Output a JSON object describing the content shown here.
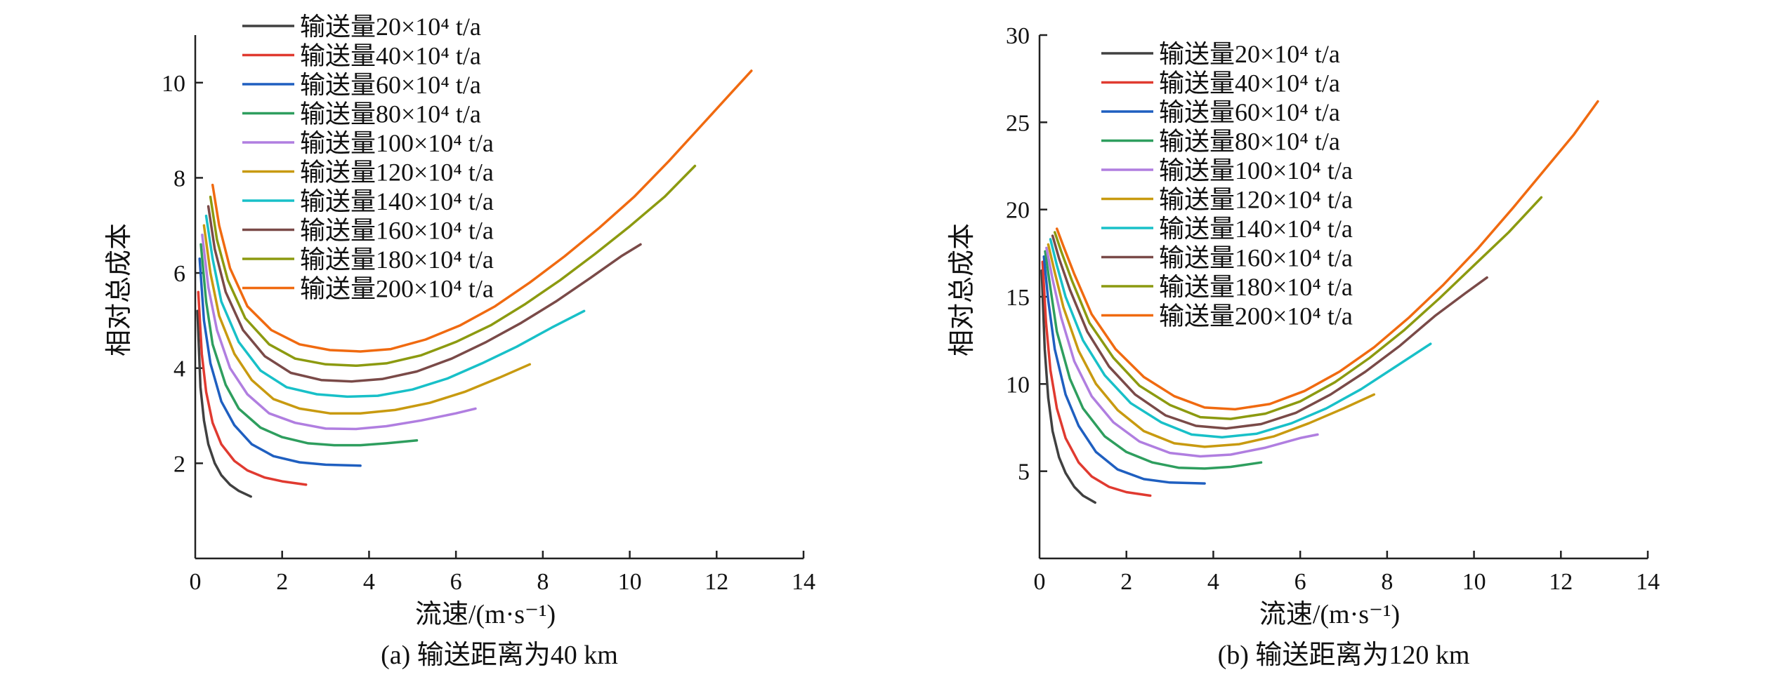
{
  "chart_data": [
    {
      "type": "line",
      "caption": "(a) 输送距离为40 km",
      "xlabel": "流速/(m·s⁻¹)",
      "ylabel": "相对总成本",
      "xlim": [
        0,
        14
      ],
      "ylim": [
        0,
        11
      ],
      "xticks": [
        0,
        2,
        4,
        6,
        8,
        10,
        12,
        14
      ],
      "yticks": [
        2,
        4,
        6,
        8,
        10
      ],
      "grid": false,
      "legend_position": "top-left",
      "series": [
        {
          "name": "输送量20×10⁴ t/a",
          "color": "#404040",
          "x": [
            0.05,
            0.12,
            0.2,
            0.3,
            0.45,
            0.6,
            0.8,
            1.0,
            1.28
          ],
          "y": [
            5.2,
            3.6,
            2.9,
            2.4,
            2.0,
            1.75,
            1.55,
            1.42,
            1.3
          ]
        },
        {
          "name": "输送量40×10⁴ t/a",
          "color": "#e03a30",
          "x": [
            0.07,
            0.15,
            0.25,
            0.4,
            0.6,
            0.9,
            1.2,
            1.6,
            2.0,
            2.55
          ],
          "y": [
            5.6,
            4.3,
            3.5,
            2.85,
            2.4,
            2.05,
            1.85,
            1.7,
            1.62,
            1.55
          ]
        },
        {
          "name": "输送量60×10⁴ t/a",
          "color": "#1f5fc0",
          "x": [
            0.1,
            0.2,
            0.35,
            0.6,
            0.9,
            1.3,
            1.8,
            2.4,
            3.0,
            3.8
          ],
          "y": [
            6.3,
            5.0,
            4.1,
            3.3,
            2.8,
            2.4,
            2.15,
            2.02,
            1.97,
            1.95
          ]
        },
        {
          "name": "输送量80×10⁴ t/a",
          "color": "#2e9e5e",
          "x": [
            0.13,
            0.25,
            0.4,
            0.7,
            1.0,
            1.5,
            2.0,
            2.6,
            3.2,
            3.8,
            4.4,
            5.1
          ],
          "y": [
            6.6,
            5.4,
            4.5,
            3.65,
            3.15,
            2.75,
            2.55,
            2.42,
            2.38,
            2.38,
            2.42,
            2.48
          ]
        },
        {
          "name": "输送量100×10⁴ t/a",
          "color": "#b07ee0",
          "x": [
            0.16,
            0.3,
            0.5,
            0.8,
            1.2,
            1.7,
            2.3,
            3.0,
            3.7,
            4.4,
            5.2,
            6.0,
            6.45
          ],
          "y": [
            6.8,
            5.7,
            4.8,
            4.0,
            3.45,
            3.05,
            2.85,
            2.73,
            2.72,
            2.78,
            2.9,
            3.05,
            3.15
          ]
        },
        {
          "name": "输送量120×10⁴ t/a",
          "color": "#c89a10",
          "x": [
            0.2,
            0.35,
            0.55,
            0.9,
            1.3,
            1.8,
            2.4,
            3.1,
            3.8,
            4.6,
            5.4,
            6.2,
            7.0,
            7.7
          ],
          "y": [
            7.0,
            6.0,
            5.1,
            4.3,
            3.75,
            3.35,
            3.15,
            3.05,
            3.05,
            3.12,
            3.27,
            3.5,
            3.8,
            4.08
          ]
        },
        {
          "name": "输送量140×10⁴ t/a",
          "color": "#18c0c8",
          "x": [
            0.25,
            0.4,
            0.6,
            1.0,
            1.5,
            2.1,
            2.8,
            3.5,
            4.2,
            5.0,
            5.8,
            6.6,
            7.4,
            8.2,
            8.95
          ],
          "y": [
            7.2,
            6.3,
            5.4,
            4.55,
            3.95,
            3.6,
            3.45,
            3.4,
            3.42,
            3.55,
            3.78,
            4.1,
            4.45,
            4.85,
            5.2
          ]
        },
        {
          "name": "输送量160×10⁴ t/a",
          "color": "#7a4a48",
          "x": [
            0.3,
            0.45,
            0.7,
            1.1,
            1.6,
            2.2,
            2.9,
            3.6,
            4.3,
            5.1,
            5.9,
            6.7,
            7.5,
            8.3,
            9.1,
            9.8,
            10.25
          ],
          "y": [
            7.4,
            6.5,
            5.6,
            4.8,
            4.25,
            3.9,
            3.75,
            3.72,
            3.77,
            3.93,
            4.2,
            4.55,
            4.95,
            5.4,
            5.9,
            6.35,
            6.6
          ]
        },
        {
          "name": "输送量180×10⁴ t/a",
          "color": "#8c9a10",
          "x": [
            0.35,
            0.5,
            0.75,
            1.15,
            1.7,
            2.3,
            3.0,
            3.7,
            4.4,
            5.2,
            6.0,
            6.8,
            7.6,
            8.4,
            9.2,
            10.0,
            10.8,
            11.5
          ],
          "y": [
            7.6,
            6.7,
            5.85,
            5.05,
            4.5,
            4.2,
            4.08,
            4.05,
            4.1,
            4.27,
            4.55,
            4.9,
            5.35,
            5.85,
            6.4,
            6.98,
            7.6,
            8.25
          ]
        },
        {
          "name": "输送量200×10⁴ t/a",
          "color": "#f06a10",
          "x": [
            0.4,
            0.55,
            0.8,
            1.2,
            1.75,
            2.4,
            3.1,
            3.8,
            4.5,
            5.3,
            6.1,
            6.9,
            7.7,
            8.5,
            9.3,
            10.1,
            10.9,
            11.7,
            12.3,
            12.8
          ],
          "y": [
            7.85,
            7.0,
            6.1,
            5.3,
            4.8,
            4.5,
            4.38,
            4.35,
            4.4,
            4.6,
            4.9,
            5.3,
            5.8,
            6.35,
            6.95,
            7.6,
            8.35,
            9.15,
            9.75,
            10.25
          ]
        }
      ]
    },
    {
      "type": "line",
      "caption": "(b) 输送距离为120 km",
      "xlabel": "流速/(m·s⁻¹)",
      "ylabel": "相对总成本",
      "xlim": [
        0,
        14
      ],
      "ylim": [
        0,
        30
      ],
      "xticks": [
        0,
        2,
        4,
        6,
        8,
        10,
        12,
        14
      ],
      "yticks": [
        5,
        10,
        15,
        20,
        25,
        30
      ],
      "grid": false,
      "legend_position": "top-left",
      "series": [
        {
          "name": "输送量20×10⁴ t/a",
          "color": "#404040",
          "x": [
            0.05,
            0.12,
            0.2,
            0.3,
            0.45,
            0.6,
            0.8,
            1.0,
            1.28
          ],
          "y": [
            16.5,
            12.0,
            9.2,
            7.3,
            5.8,
            4.9,
            4.1,
            3.6,
            3.2
          ]
        },
        {
          "name": "输送量40×10⁴ t/a",
          "color": "#e03a30",
          "x": [
            0.07,
            0.15,
            0.25,
            0.4,
            0.6,
            0.9,
            1.2,
            1.6,
            2.0,
            2.55
          ],
          "y": [
            17.0,
            13.5,
            10.8,
            8.6,
            6.9,
            5.5,
            4.7,
            4.1,
            3.8,
            3.6
          ]
        },
        {
          "name": "输送量60×10⁴ t/a",
          "color": "#1f5fc0",
          "x": [
            0.1,
            0.2,
            0.35,
            0.6,
            0.9,
            1.3,
            1.8,
            2.4,
            3.0,
            3.8
          ],
          "y": [
            17.3,
            14.8,
            12.0,
            9.4,
            7.6,
            6.1,
            5.1,
            4.55,
            4.35,
            4.3
          ]
        },
        {
          "name": "输送量80×10⁴ t/a",
          "color": "#2e9e5e",
          "x": [
            0.13,
            0.25,
            0.4,
            0.7,
            1.0,
            1.5,
            2.0,
            2.6,
            3.2,
            3.8,
            4.4,
            5.1
          ],
          "y": [
            17.6,
            15.5,
            13.0,
            10.3,
            8.6,
            7.0,
            6.1,
            5.5,
            5.2,
            5.15,
            5.25,
            5.5
          ]
        },
        {
          "name": "输送量100×10⁴ t/a",
          "color": "#b07ee0",
          "x": [
            0.16,
            0.3,
            0.5,
            0.8,
            1.2,
            1.7,
            2.3,
            3.0,
            3.7,
            4.4,
            5.2,
            6.0,
            6.4
          ],
          "y": [
            17.8,
            16.0,
            13.8,
            11.3,
            9.3,
            7.8,
            6.7,
            6.05,
            5.85,
            5.95,
            6.35,
            6.9,
            7.1
          ]
        },
        {
          "name": "输送量120×10⁴ t/a",
          "color": "#c89a10",
          "x": [
            0.2,
            0.35,
            0.55,
            0.9,
            1.3,
            1.8,
            2.4,
            3.1,
            3.8,
            4.6,
            5.4,
            6.2,
            7.0,
            7.7
          ],
          "y": [
            18.0,
            16.4,
            14.4,
            11.9,
            10.0,
            8.5,
            7.3,
            6.6,
            6.4,
            6.55,
            7.0,
            7.75,
            8.6,
            9.4
          ]
        },
        {
          "name": "输送量140×10⁴ t/a",
          "color": "#18c0c8",
          "x": [
            0.25,
            0.4,
            0.6,
            1.0,
            1.5,
            2.1,
            2.8,
            3.5,
            4.2,
            5.0,
            5.8,
            6.6,
            7.4,
            8.2,
            9.0
          ],
          "y": [
            18.3,
            16.8,
            15.0,
            12.5,
            10.5,
            8.9,
            7.8,
            7.1,
            6.95,
            7.15,
            7.75,
            8.6,
            9.7,
            11.0,
            12.3
          ]
        },
        {
          "name": "输送量160×10⁴ t/a",
          "color": "#7a4a48",
          "x": [
            0.3,
            0.45,
            0.7,
            1.1,
            1.6,
            2.2,
            2.9,
            3.6,
            4.3,
            5.1,
            5.9,
            6.7,
            7.5,
            8.3,
            9.1,
            9.8,
            10.3
          ],
          "y": [
            18.5,
            17.2,
            15.4,
            13.0,
            11.0,
            9.4,
            8.2,
            7.6,
            7.45,
            7.7,
            8.35,
            9.4,
            10.7,
            12.2,
            13.9,
            15.2,
            16.1
          ]
        },
        {
          "name": "输送量180×10⁴ t/a",
          "color": "#8c9a10",
          "x": [
            0.35,
            0.5,
            0.75,
            1.15,
            1.7,
            2.3,
            3.0,
            3.7,
            4.4,
            5.2,
            6.0,
            6.8,
            7.6,
            8.4,
            9.2,
            10.0,
            10.8,
            11.55
          ],
          "y": [
            18.7,
            17.6,
            15.9,
            13.5,
            11.5,
            9.9,
            8.8,
            8.1,
            8.0,
            8.3,
            9.0,
            10.1,
            11.5,
            13.1,
            14.9,
            16.8,
            18.7,
            20.7
          ]
        },
        {
          "name": "输送量200×10⁴ t/a",
          "color": "#f06a10",
          "x": [
            0.4,
            0.55,
            0.8,
            1.2,
            1.75,
            2.4,
            3.1,
            3.8,
            4.5,
            5.3,
            6.1,
            6.9,
            7.7,
            8.5,
            9.3,
            10.1,
            10.9,
            11.7,
            12.3,
            12.85
          ],
          "y": [
            18.9,
            17.9,
            16.3,
            14.0,
            12.0,
            10.4,
            9.3,
            8.65,
            8.55,
            8.85,
            9.6,
            10.7,
            12.1,
            13.8,
            15.7,
            17.8,
            20.1,
            22.5,
            24.3,
            26.2
          ]
        }
      ]
    }
  ]
}
